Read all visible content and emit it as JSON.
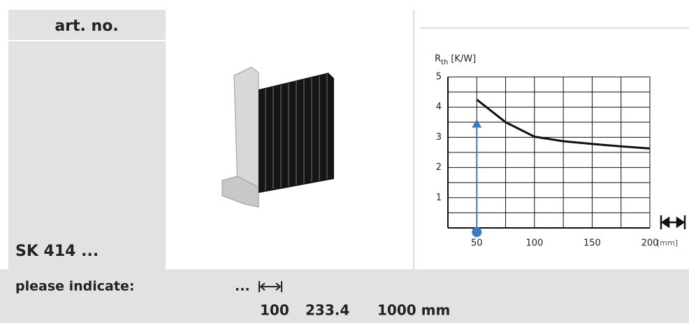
{
  "header": {
    "title": "art. no."
  },
  "product": {
    "name": "SK 414 ..."
  },
  "footer": {
    "label": "please indicate:",
    "ellipsis": "...",
    "lengths": [
      "100",
      "233.4",
      "1000 mm"
    ]
  },
  "chart_data": {
    "type": "line",
    "y_label": {
      "symbol": "R",
      "subscript": "th",
      "unit": "[K/W]"
    },
    "x_unit": "[mm]",
    "x": [
      50,
      75,
      100,
      125,
      150,
      175,
      200
    ],
    "series": [
      {
        "color": "#111111",
        "values": [
          4.25,
          3.5,
          3.02,
          2.87,
          2.78,
          2.7,
          2.63
        ]
      }
    ],
    "xlim": [
      25,
      200
    ],
    "xticks": [
      50,
      100,
      150,
      200
    ],
    "x_minor_ticks": [
      25,
      75,
      125,
      175
    ],
    "ylim": [
      0,
      5
    ],
    "yticks": [
      1,
      2,
      3,
      4,
      5
    ],
    "y_minor_ticks": [
      0.5,
      1.5,
      2.5,
      3.5,
      4.5
    ],
    "grid": true,
    "arrow": {
      "x": 50,
      "from": 0,
      "to": 3.6,
      "color": "#3a7bbf"
    }
  }
}
